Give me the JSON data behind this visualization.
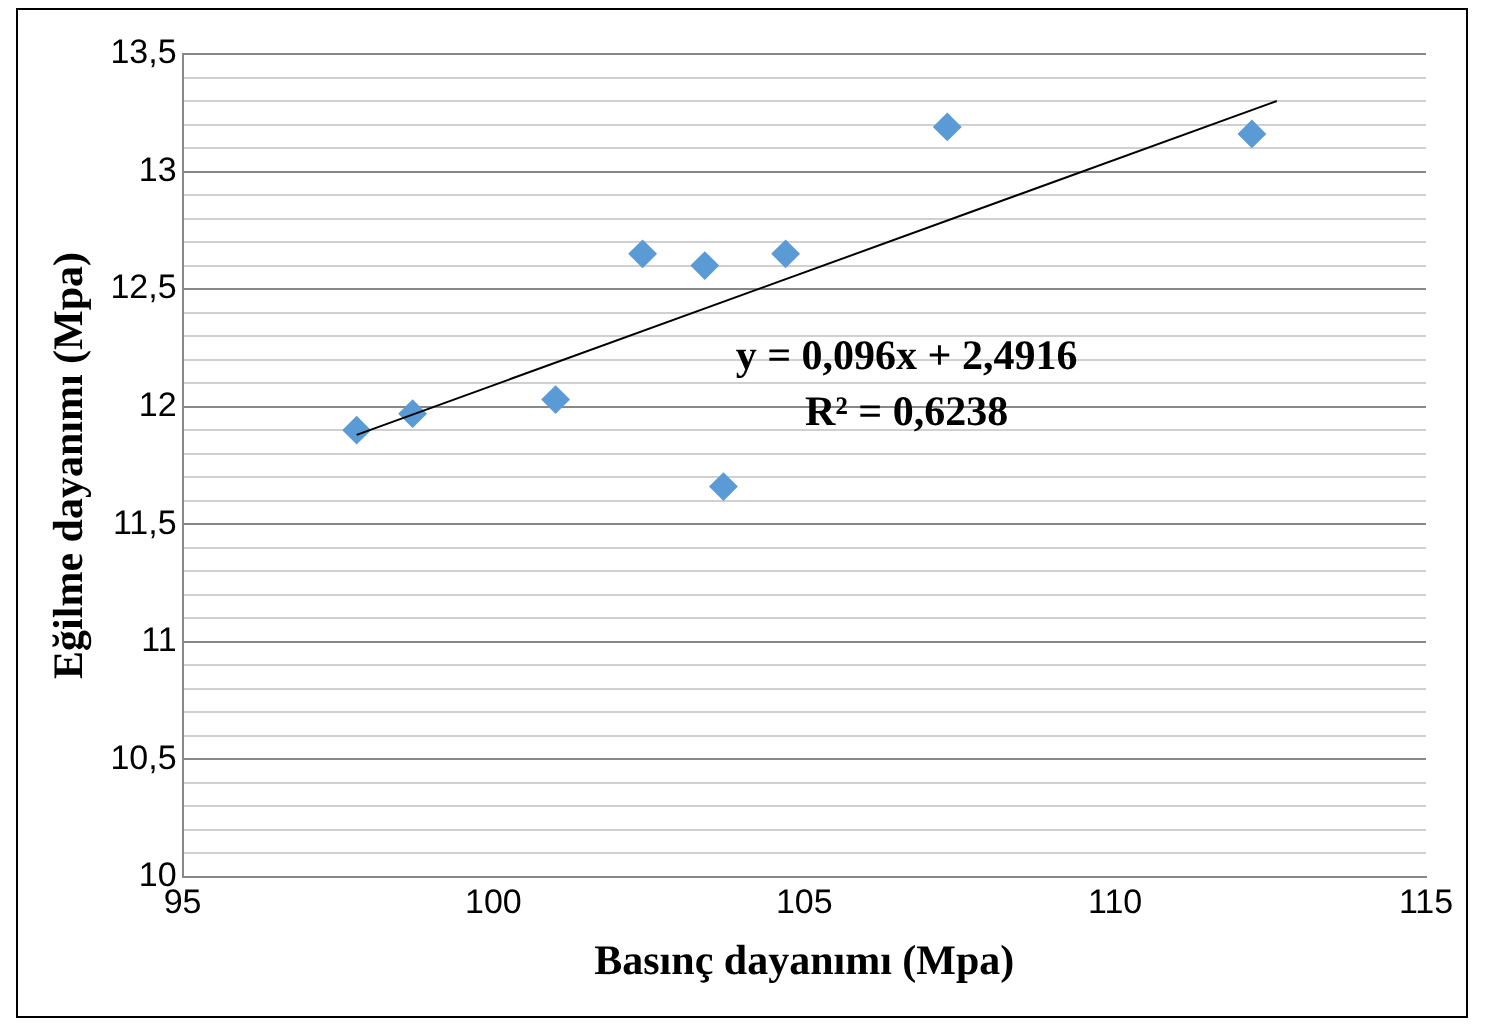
{
  "chart_data": {
    "type": "scatter",
    "xlabel": "Basınç dayanımı (Mpa)",
    "ylabel": "Eğilme dayanımı (Mpa)",
    "xlim": [
      95,
      115
    ],
    "xticks": [
      95,
      100,
      105,
      110,
      115
    ],
    "ylim": [
      10,
      13.5
    ],
    "yticks": [
      10,
      {
        "value": 10.1,
        "label": null
      },
      {
        "value": 10.2,
        "label": null
      },
      {
        "value": 10.3,
        "label": null
      },
      {
        "value": 10.4,
        "label": null
      },
      {
        "value": 10.5,
        "label": "10,5"
      },
      {
        "value": 10.6,
        "label": null
      },
      {
        "value": 10.7,
        "label": null
      },
      {
        "value": 10.8,
        "label": null
      },
      {
        "value": 10.9,
        "label": null
      },
      11,
      {
        "value": 11.1,
        "label": null
      },
      {
        "value": 11.2,
        "label": null
      },
      {
        "value": 11.3,
        "label": null
      },
      {
        "value": 11.4,
        "label": null
      },
      {
        "value": 11.5,
        "label": "11,5"
      },
      {
        "value": 11.6,
        "label": null
      },
      {
        "value": 11.7,
        "label": null
      },
      {
        "value": 11.8,
        "label": null
      },
      {
        "value": 11.9,
        "label": null
      },
      12,
      {
        "value": 12.1,
        "label": null
      },
      {
        "value": 12.2,
        "label": null
      },
      {
        "value": 12.3,
        "label": null
      },
      {
        "value": 12.4,
        "label": null
      },
      {
        "value": 12.5,
        "label": "12,5"
      },
      {
        "value": 12.6,
        "label": null
      },
      {
        "value": 12.7,
        "label": null
      },
      {
        "value": 12.8,
        "label": null
      },
      {
        "value": 12.9,
        "label": null
      },
      13,
      {
        "value": 13.1,
        "label": null
      },
      {
        "value": 13.2,
        "label": null
      },
      {
        "value": 13.3,
        "label": null
      },
      {
        "value": 13.4,
        "label": null
      },
      {
        "value": 13.5,
        "label": "13,5"
      }
    ],
    "grid": "y",
    "legend": false,
    "marker": "diamond",
    "series": [
      {
        "type": "scatter",
        "color": "#5b9bd5",
        "x": [
          97.8,
          98.7,
          101.0,
          102.4,
          103.4,
          103.7,
          104.7,
          107.3,
          112.2
        ],
        "values": [
          11.9,
          11.97,
          12.03,
          12.65,
          12.6,
          11.66,
          12.65,
          13.19,
          13.16
        ]
      },
      {
        "type": "line",
        "color": "#000000",
        "marker": "none",
        "x": [
          97.8,
          112.6
        ],
        "values": [
          11.88,
          13.3
        ]
      }
    ],
    "annotations": [
      "y = 0,096x + 2,4916",
      "R² = 0,6238"
    ]
  }
}
